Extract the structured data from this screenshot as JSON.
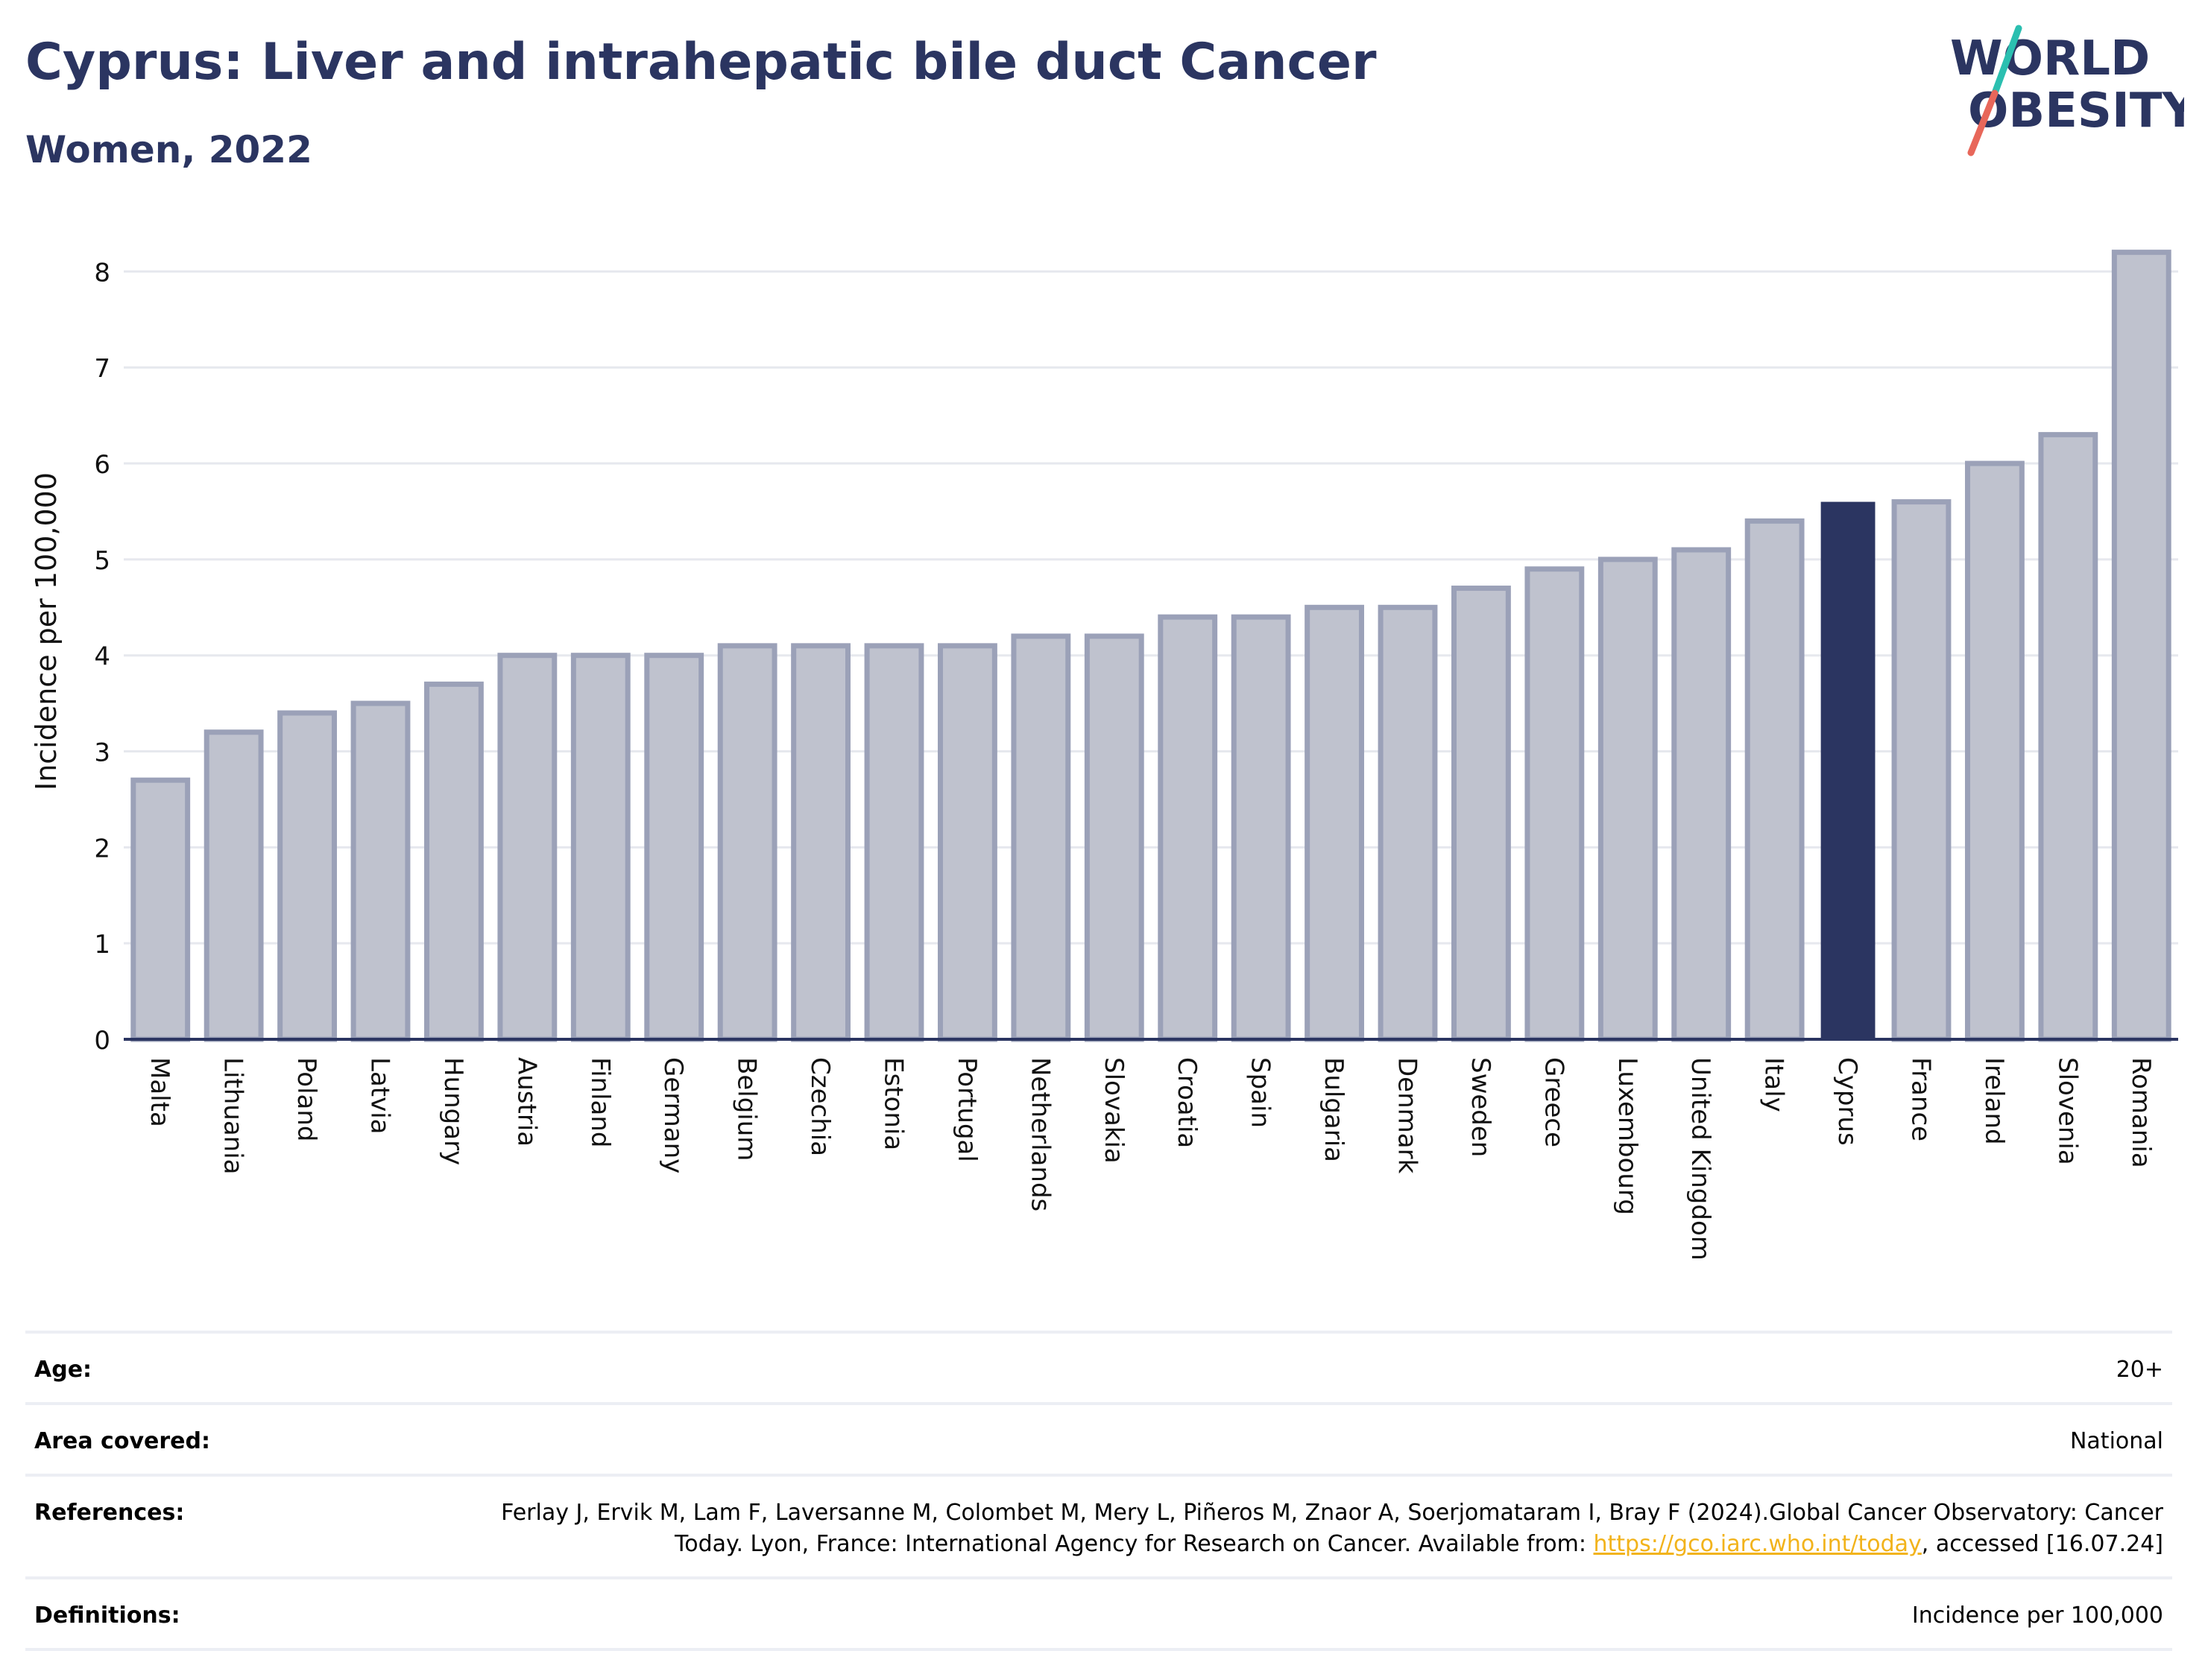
{
  "header": {
    "title": "Cyprus: Liver and intrahepatic bile duct Cancer",
    "subtitle": "Women, 2022"
  },
  "logo": {
    "line1": "WORLD",
    "line2": "OBESITY",
    "colors": {
      "text": "#2b3561",
      "slash_top": "#2bbfb0",
      "slash_bottom": "#e8675a"
    }
  },
  "chart_data": {
    "type": "bar",
    "categories": [
      "Malta",
      "Lithuania",
      "Poland",
      "Latvia",
      "Hungary",
      "Austria",
      "Finland",
      "Germany",
      "Belgium",
      "Czechia",
      "Estonia",
      "Portugal",
      "Netherlands",
      "Slovakia",
      "Croatia",
      "Spain",
      "Bulgaria",
      "Denmark",
      "Sweden",
      "Greece",
      "Luxembourg",
      "United Kingdom",
      "Italy",
      "Cyprus",
      "France",
      "Ireland",
      "Slovenia",
      "Romania"
    ],
    "values": [
      2.7,
      3.2,
      3.4,
      3.5,
      3.7,
      4.0,
      4.0,
      4.0,
      4.1,
      4.1,
      4.1,
      4.1,
      4.2,
      4.2,
      4.4,
      4.4,
      4.5,
      4.5,
      4.7,
      4.9,
      5.0,
      5.1,
      5.4,
      5.6,
      5.6,
      6.0,
      6.3,
      8.2
    ],
    "highlight": "Cyprus",
    "ylabel": "Incidence per 100,000",
    "xlabel": "",
    "ylim": [
      0,
      8.5
    ],
    "yticks": [
      0,
      1,
      2,
      3,
      4,
      5,
      6,
      7,
      8
    ],
    "grid": true,
    "colors": {
      "bar_fill": "#bfc2ce",
      "bar_stroke": "#9ba1b8",
      "highlight_fill": "#2b3561",
      "grid": "#e6e8ee",
      "axis": "#2b3561"
    }
  },
  "info": {
    "age_label": "Age:",
    "age_value": "20+",
    "area_label": "Area covered:",
    "area_value": "National",
    "references_label": "References:",
    "references_text": "Ferlay J, Ervik M, Lam F, Laversanne M, Colombet M, Mery L, Piñeros M, Znaor A, Soerjomataram I, Bray F (2024).Global Cancer Observatory: Cancer Today. Lyon, France: International Agency for Research on Cancer. Available from: ",
    "references_link": "https://gco.iarc.who.int/today",
    "references_suffix": ", accessed [16.07.24]",
    "definitions_label": "Definitions:",
    "definitions_value": "Incidence per 100,000"
  }
}
